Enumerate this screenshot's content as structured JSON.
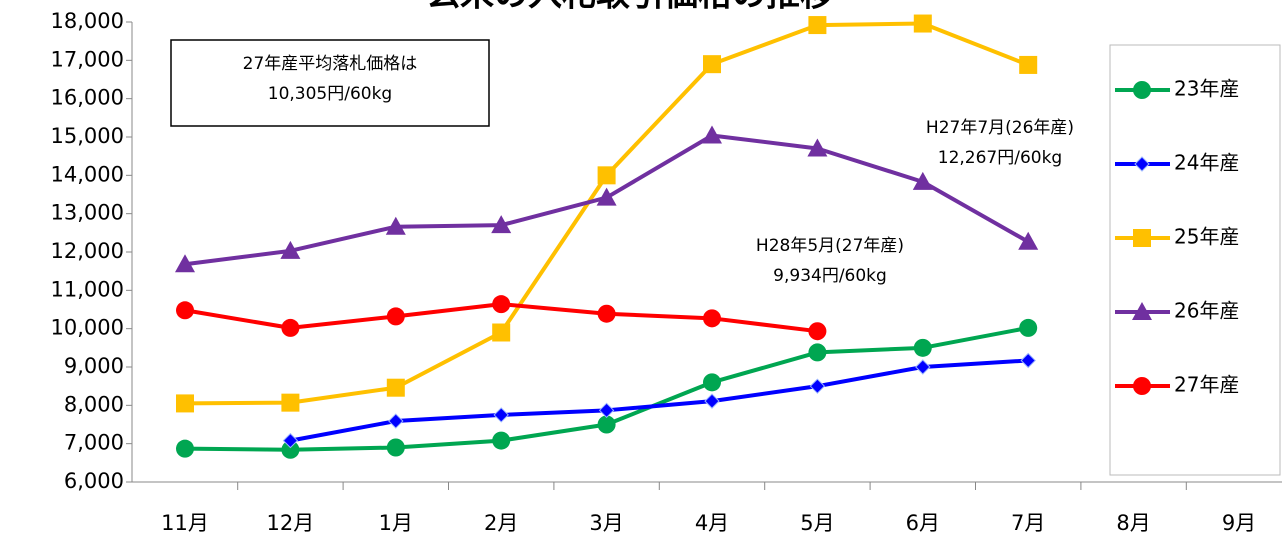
{
  "chart_data": {
    "type": "line",
    "title": "玄米の入札取引価格の推移",
    "categories": [
      "11月",
      "12月",
      "1月",
      "2月",
      "3月",
      "4月",
      "5月",
      "6月",
      "7月",
      "8月",
      "9月"
    ],
    "series": [
      {
        "name": "23年産",
        "color": "#00a651",
        "marker": "circle",
        "values": [
          6870,
          6840,
          6900,
          7080,
          7500,
          8600,
          9380,
          9500,
          10020,
          null,
          null
        ]
      },
      {
        "name": "24年産",
        "color": "#0000ff",
        "marker": "diamond",
        "values": [
          null,
          7080,
          7590,
          7750,
          7870,
          8110,
          8500,
          9000,
          9170,
          null,
          null
        ]
      },
      {
        "name": "25年産",
        "color": "#ffc000",
        "marker": "square",
        "values": [
          8050,
          8070,
          8460,
          9900,
          14000,
          16900,
          17920,
          17960,
          16880,
          null,
          null
        ]
      },
      {
        "name": "26年産",
        "color": "#7030a0",
        "marker": "triangle",
        "values": [
          11680,
          12030,
          12660,
          12700,
          13420,
          15040,
          14700,
          13830,
          12267,
          null,
          null
        ]
      },
      {
        "name": "27年産",
        "color": "#ff0000",
        "marker": "circle",
        "values": [
          10480,
          10020,
          10320,
          10640,
          10390,
          10270,
          9934,
          null,
          null,
          null,
          null
        ]
      }
    ],
    "ylim": [
      6000,
      18000
    ],
    "yticks": [
      {
        "value": 6000,
        "label": "6,000"
      },
      {
        "value": 7000,
        "label": "7,000"
      },
      {
        "value": 8000,
        "label": "8,000"
      },
      {
        "value": 9000,
        "label": "9,000"
      },
      {
        "value": 10000,
        "label": "10,000"
      },
      {
        "value": 11000,
        "label": "11,000"
      },
      {
        "value": 12000,
        "label": "12,000"
      },
      {
        "value": 13000,
        "label": "13,000"
      },
      {
        "value": 14000,
        "label": "14,000"
      },
      {
        "value": 15000,
        "label": "15,000"
      },
      {
        "value": 16000,
        "label": "16,000"
      },
      {
        "value": 17000,
        "label": "17,000"
      },
      {
        "value": 18000,
        "label": "18,000"
      }
    ],
    "grid": false,
    "legend": "right",
    "annotations": [
      {
        "lines": [
          "27年産平均落札価格は",
          "10,305円/60kg"
        ],
        "color": "#000000",
        "boxed": true
      },
      {
        "lines": [
          "H27年7月(26年産)",
          "12,267円/60kg"
        ],
        "color": "#7030a0",
        "boxed": false
      },
      {
        "lines": [
          "H28年5月(27年産)",
          "9,934円/60kg"
        ],
        "color": "#ff0000",
        "boxed": false
      }
    ]
  }
}
